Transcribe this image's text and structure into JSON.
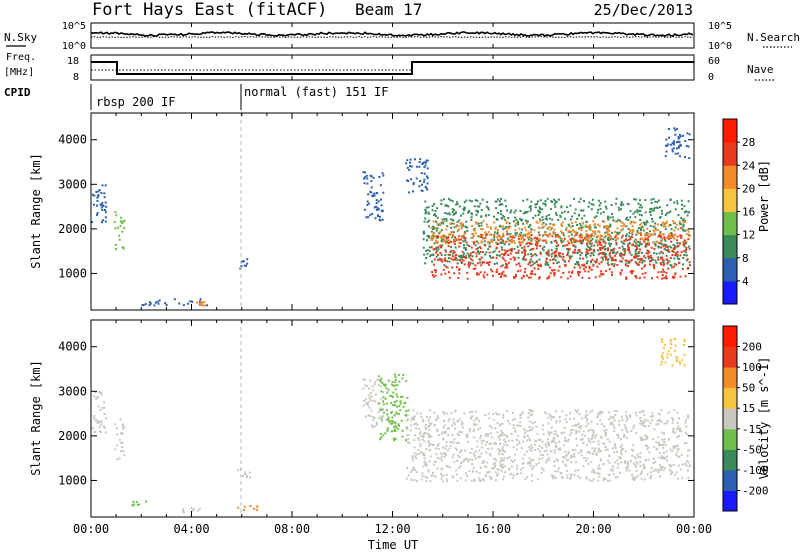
{
  "header": {
    "station": "Fort Hays East (fitACF)",
    "beam": "Beam 17",
    "date": "25/Dec/2013"
  },
  "noise_panel": {
    "left_label": "N.Sky",
    "right_label": "N.Search",
    "left_ticks": [
      "10^5",
      "10^0"
    ],
    "right_ticks": [
      "10^5",
      "10^0"
    ]
  },
  "freq_panel": {
    "left_label_1": "Freq.",
    "left_label_2": "[MHz]",
    "right_label": "Nave",
    "left_ticks": [
      "18",
      "8"
    ],
    "right_ticks": [
      "60",
      "0"
    ]
  },
  "cpid": {
    "label": "CPID",
    "segments": [
      {
        "label": "rbsp 200 IF",
        "start_hour": 0,
        "end_hour": 6
      },
      {
        "label": "normal (fast) 151 IF",
        "start_hour": 6,
        "end_hour": 24
      }
    ]
  },
  "x_axis": {
    "label": "Time UT",
    "ticks": [
      "00:00",
      "04:00",
      "08:00",
      "12:00",
      "16:00",
      "20:00",
      "00:00"
    ]
  },
  "chart_data": [
    {
      "type": "heatmap",
      "panel": "power",
      "ylabel": "Slant Range [km]",
      "yticks": [
        1000,
        2000,
        3000,
        4000
      ],
      "ylim": [
        180,
        4600
      ],
      "xlim_hours": [
        0,
        24
      ],
      "colorbar": {
        "label": "Power [dB]",
        "ticks": [
          4,
          8,
          12,
          16,
          20,
          24,
          28
        ],
        "colors": [
          "#1a1aff",
          "#2c5fb0",
          "#3a8a5a",
          "#6fbf4a",
          "#f5c542",
          "#f28c28",
          "#e83a1c",
          "#ff1a00"
        ]
      },
      "regions": [
        {
          "t0": 0.0,
          "t1": 0.6,
          "r0": 2100,
          "r1": 3050,
          "color": "#2c5fb0"
        },
        {
          "t0": 0.9,
          "t1": 1.3,
          "r0": 1500,
          "r1": 2400,
          "color": "#6fbf4a"
        },
        {
          "t0": 2.0,
          "t1": 4.6,
          "r0": 300,
          "r1": 450,
          "color": "#2c5fb0"
        },
        {
          "t0": 4.1,
          "t1": 4.5,
          "r0": 300,
          "r1": 400,
          "color": "#f28c28"
        },
        {
          "t0": 5.8,
          "t1": 6.3,
          "r0": 1050,
          "r1": 1350,
          "color": "#2c5fb0"
        },
        {
          "t0": 10.8,
          "t1": 11.6,
          "r0": 2200,
          "r1": 3300,
          "color": "#2c5fb0"
        },
        {
          "t0": 12.5,
          "t1": 13.4,
          "r0": 2800,
          "r1": 3600,
          "color": "#2c5fb0"
        },
        {
          "t0": 13.2,
          "t1": 23.8,
          "r0": 1200,
          "r1": 2700,
          "color": "#3a8a5a"
        },
        {
          "t0": 13.5,
          "t1": 23.8,
          "r0": 900,
          "r1": 1900,
          "color": "#e83a1c"
        },
        {
          "t0": 13.5,
          "t1": 23.8,
          "r0": 1700,
          "r1": 2200,
          "color": "#f28c28"
        },
        {
          "t0": 22.8,
          "t1": 23.8,
          "r0": 3600,
          "r1": 4300,
          "color": "#2c5fb0"
        }
      ]
    },
    {
      "type": "heatmap",
      "panel": "velocity",
      "ylabel": "Slant Range [km]",
      "yticks": [
        1000,
        2000,
        3000,
        4000
      ],
      "ylim": [
        180,
        4600
      ],
      "xlim_hours": [
        0,
        24
      ],
      "colorbar": {
        "label": "Velocity [m s^-1]",
        "ticks": [
          200,
          100,
          50,
          15,
          -15,
          -50,
          -100,
          -200
        ],
        "colors": [
          "#1a1aff",
          "#2c5fb0",
          "#3a8a5a",
          "#6fbf4a",
          "#c8c8c0",
          "#f5c542",
          "#f28c28",
          "#e83a1c",
          "#ff1a00"
        ]
      },
      "regions": [
        {
          "t0": 0.0,
          "t1": 0.6,
          "r0": 2100,
          "r1": 3050,
          "color": "#c8c8c0"
        },
        {
          "t0": 0.9,
          "t1": 1.3,
          "r0": 1500,
          "r1": 2400,
          "color": "#c8c8c0"
        },
        {
          "t0": 1.6,
          "t1": 2.2,
          "r0": 450,
          "r1": 550,
          "color": "#6fbf4a"
        },
        {
          "t0": 3.6,
          "t1": 4.3,
          "r0": 300,
          "r1": 420,
          "color": "#c8c8c0"
        },
        {
          "t0": 5.8,
          "t1": 6.6,
          "r0": 350,
          "r1": 450,
          "color": "#f28c28"
        },
        {
          "t0": 5.8,
          "t1": 6.3,
          "r0": 1050,
          "r1": 1350,
          "color": "#c8c8c0"
        },
        {
          "t0": 10.8,
          "t1": 11.6,
          "r0": 2200,
          "r1": 3300,
          "color": "#c8c8c0"
        },
        {
          "t0": 11.4,
          "t1": 12.6,
          "r0": 1900,
          "r1": 3400,
          "color": "#6fbf4a"
        },
        {
          "t0": 12.5,
          "t1": 23.8,
          "r0": 1000,
          "r1": 2600,
          "color": "#c8c8c0"
        },
        {
          "t0": 22.6,
          "t1": 23.6,
          "r0": 3600,
          "r1": 4200,
          "color": "#f5c542"
        }
      ]
    }
  ]
}
